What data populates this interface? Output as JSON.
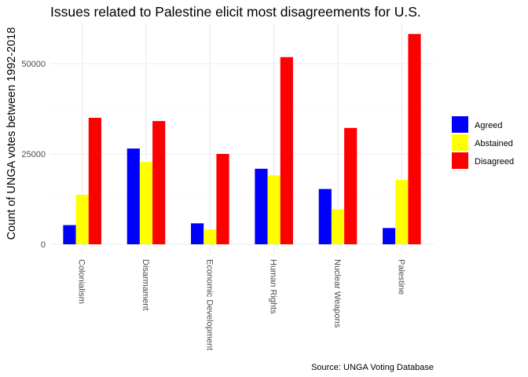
{
  "chart_data": {
    "type": "bar",
    "title": "Issues related to Palestine elicit most disagreements for U.S.",
    "xlabel": "",
    "ylabel": "Count of UNGA votes between 1992-2018",
    "caption": "Source: UNGA Voting Database",
    "categories": [
      "Colonialism",
      "Disarmament",
      "Economic Development",
      "Human Rights",
      "Nuclear Weapons",
      "Palestine"
    ],
    "series": [
      {
        "name": "Agreed",
        "color": "#0000FF",
        "values": [
          5300,
          26500,
          5800,
          20900,
          15300,
          4500
        ]
      },
      {
        "name": "Abstained",
        "color": "#FFFF00",
        "values": [
          13700,
          22800,
          4100,
          19100,
          9700,
          17800
        ]
      },
      {
        "name": "Disagreed",
        "color": "#FF0000",
        "values": [
          35000,
          34100,
          25000,
          51800,
          32200,
          58200
        ]
      }
    ],
    "yticks": [
      0,
      25000,
      50000
    ],
    "ytick_labels": [
      "0",
      "25000",
      "50000"
    ],
    "ylim": [
      0,
      61000
    ],
    "grid": true,
    "legend_position": "right"
  }
}
